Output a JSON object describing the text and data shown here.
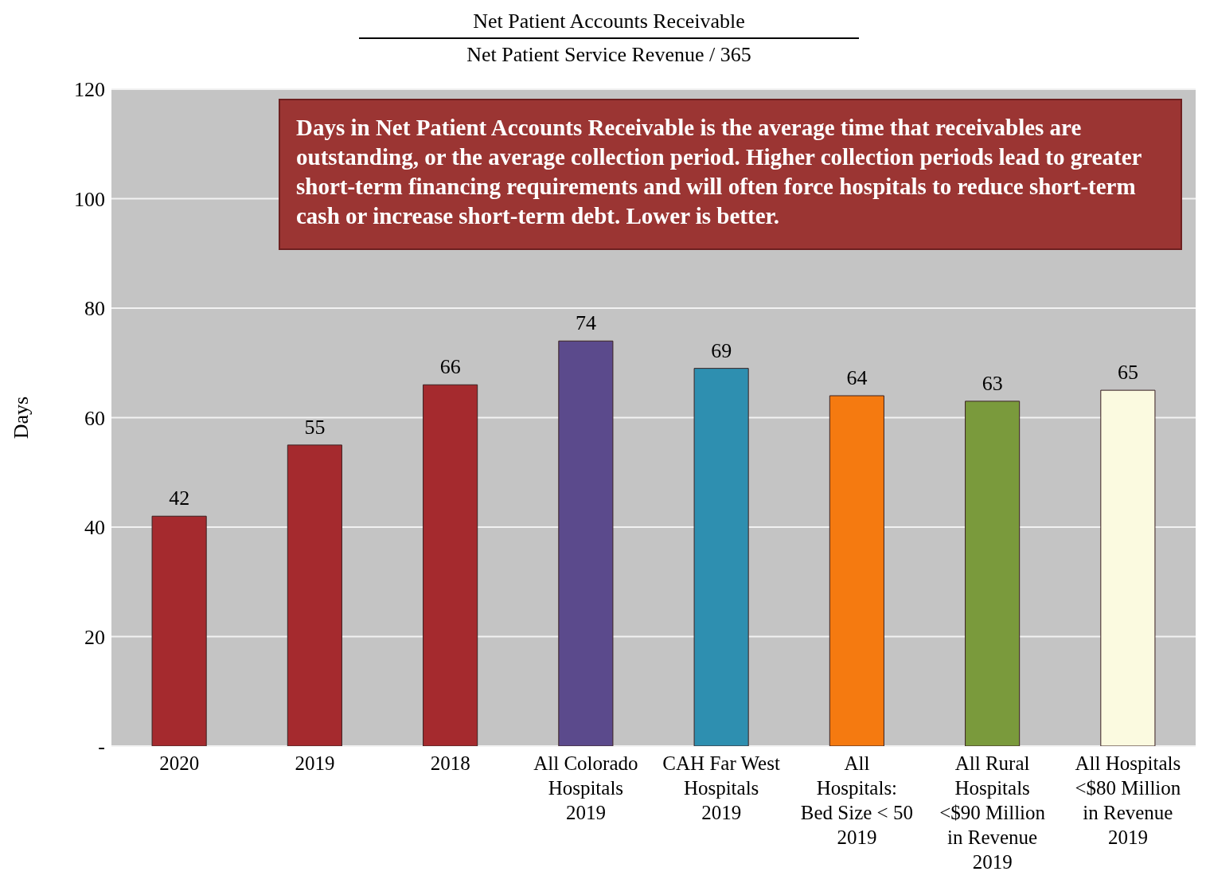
{
  "chart_data": {
    "type": "bar",
    "title": "Net Patient Accounts Receivable",
    "subtitle": "Net Patient Service Revenue / 365",
    "ylabel": "Days",
    "categories": [
      "2020",
      "2019",
      "2018",
      "All Colorado Hospitals 2019",
      "CAH Far West Hospitals 2019",
      "All Hospitals: Bed Size < 50 2019",
      "All Rural Hospitals <$90 Million in Revenue 2019",
      "All Hospitals <$80 Million in Revenue 2019"
    ],
    "values": [
      42,
      55,
      66,
      74,
      69,
      64,
      63,
      65
    ],
    "colors": [
      "#a52a2e",
      "#a52a2e",
      "#a52a2e",
      "#5b4a8c",
      "#2e8fb0",
      "#f57a10",
      "#7a9a3c",
      "#fbfae0"
    ],
    "ylim": [
      0,
      120
    ],
    "yticks": [
      {
        "value": 0,
        "label": "-"
      },
      20,
      40,
      60,
      80,
      100,
      120
    ],
    "grid": "y",
    "data_labels": true,
    "annotations": [
      "Days in Net Patient Accounts Receivable is the average time that receivables are outstanding, or the average collection period. Higher collection periods lead to greater short-term financing requirements and will often force hospitals to reduce short-term cash or increase short-term debt. Lower is better."
    ]
  }
}
